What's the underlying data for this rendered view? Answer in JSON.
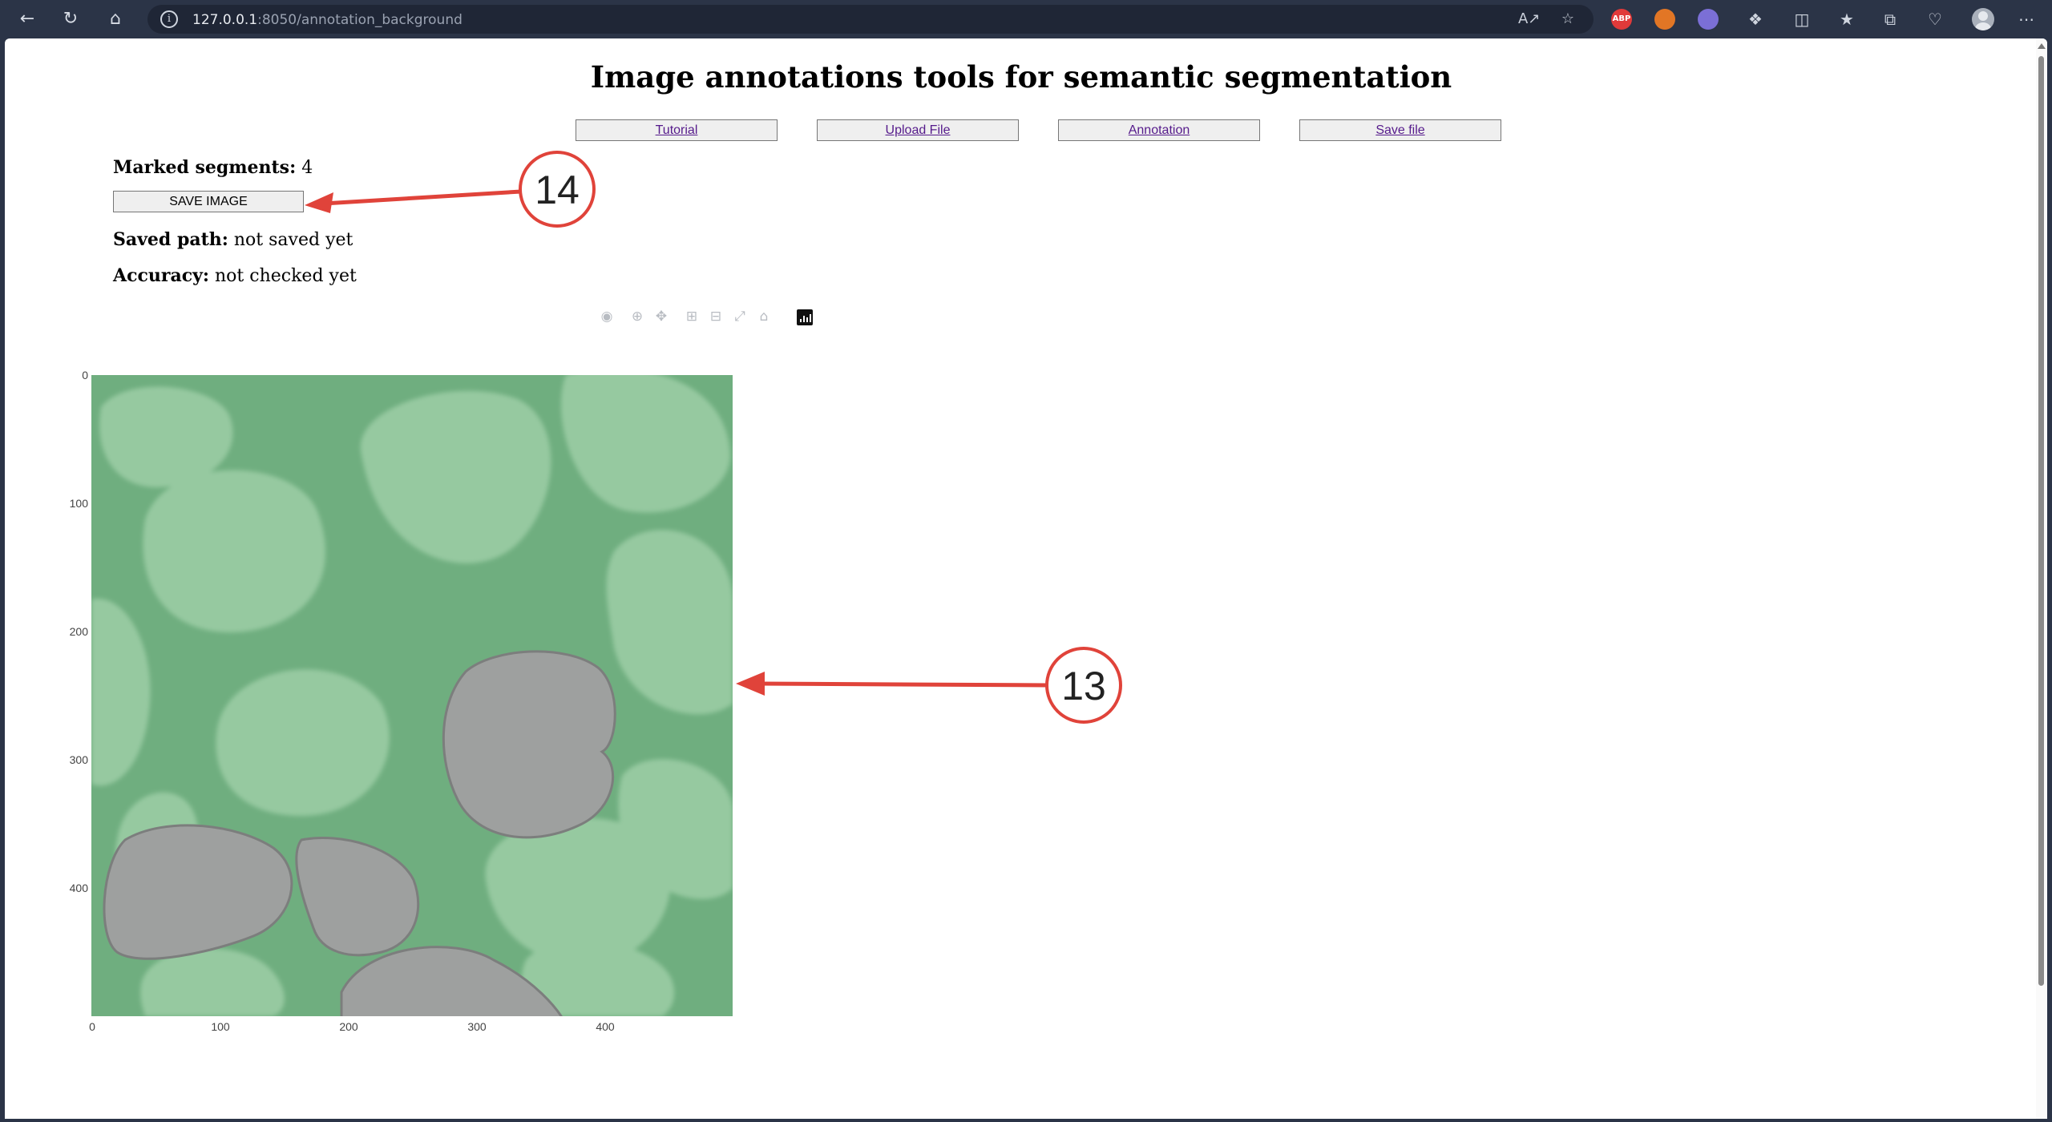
{
  "browser": {
    "url_host": "127.0.0.1",
    "url_rest": ":8050/annotation_background",
    "extensions": [
      "ABP",
      "fox",
      "cloud",
      "puzzle"
    ]
  },
  "page": {
    "title": "Image annotations tools for semantic segmentation",
    "nav": [
      "Tutorial",
      "Upload File",
      "Annotation",
      "Save file"
    ],
    "marked_segments_label": "Marked segments:",
    "marked_segments_value": "4",
    "save_button": "SAVE IMAGE",
    "saved_path_label": "Saved path:",
    "saved_path_value": "not saved yet",
    "accuracy_label": "Accuracy:",
    "accuracy_value": "not checked yet"
  },
  "colors": {
    "background_segment": "#6fae7f",
    "foreground_segment": "#9ea09f",
    "callout": "#e0433a"
  },
  "chart_data": {
    "type": "heatmap",
    "title": "",
    "x_ticks": [
      "0",
      "100",
      "200",
      "300",
      "400"
    ],
    "y_ticks": [
      "0",
      "100",
      "200",
      "300",
      "400"
    ],
    "xlim": [
      0,
      500
    ],
    "ylim": [
      500,
      0
    ],
    "description_classes": [
      "background",
      "marked segment"
    ]
  },
  "annotations": [
    {
      "label": "14"
    },
    {
      "label": "13"
    }
  ]
}
